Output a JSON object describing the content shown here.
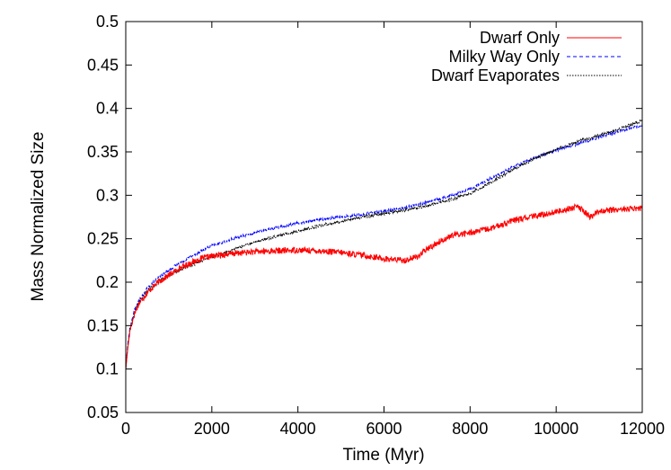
{
  "chart_data": {
    "type": "line",
    "title": "",
    "xlabel": "Time (Myr)",
    "ylabel": "Mass Normalized Size",
    "xlim": [
      0,
      12000
    ],
    "ylim": [
      0.05,
      0.5
    ],
    "xticks": [
      0,
      2000,
      4000,
      6000,
      8000,
      10000,
      12000
    ],
    "yticks": [
      0.05,
      0.1,
      0.15,
      0.2,
      0.25,
      0.3,
      0.35,
      0.4,
      0.45,
      0.5
    ],
    "xtick_labels": [
      "0",
      "2000",
      "4000",
      "6000",
      "8000",
      "10000",
      "12000"
    ],
    "ytick_labels": [
      "0.05",
      "0.1",
      "0.15",
      "0.2",
      "0.25",
      "0.3",
      "0.35",
      "0.4",
      "0.45",
      "0.5"
    ],
    "grid": false,
    "legend_position": "top-right",
    "series": [
      {
        "name": "Dwarf Only",
        "color": "#ff0000",
        "style": "solid",
        "x": [
          0,
          50,
          100,
          200,
          300,
          500,
          750,
          1000,
          1250,
          1500,
          1750,
          2000,
          2500,
          3000,
          3500,
          4000,
          4500,
          5000,
          5500,
          6000,
          6500,
          6800,
          7000,
          7300,
          7600,
          8000,
          8500,
          9000,
          9500,
          10000,
          10500,
          10800,
          11000,
          11500,
          12000
        ],
        "y": [
          0.1,
          0.125,
          0.145,
          0.163,
          0.175,
          0.188,
          0.2,
          0.208,
          0.216,
          0.222,
          0.227,
          0.23,
          0.233,
          0.235,
          0.236,
          0.237,
          0.236,
          0.234,
          0.231,
          0.227,
          0.225,
          0.23,
          0.238,
          0.247,
          0.254,
          0.257,
          0.262,
          0.271,
          0.276,
          0.281,
          0.287,
          0.275,
          0.282,
          0.284,
          0.285
        ]
      },
      {
        "name": "Milky Way Only",
        "color": "#0000ff",
        "style": "dashed",
        "x": [
          0,
          50,
          100,
          200,
          300,
          500,
          750,
          1000,
          1250,
          1500,
          1750,
          2000,
          2500,
          3000,
          3500,
          4000,
          4500,
          5000,
          5500,
          6000,
          6500,
          7000,
          7500,
          8000,
          8500,
          9000,
          9500,
          10000,
          10500,
          11000,
          11500,
          12000
        ],
        "y": [
          0.1,
          0.13,
          0.148,
          0.167,
          0.178,
          0.193,
          0.205,
          0.214,
          0.222,
          0.229,
          0.236,
          0.242,
          0.25,
          0.257,
          0.263,
          0.268,
          0.272,
          0.275,
          0.278,
          0.282,
          0.286,
          0.292,
          0.299,
          0.307,
          0.32,
          0.333,
          0.343,
          0.352,
          0.359,
          0.367,
          0.374,
          0.381
        ]
      },
      {
        "name": "Dwarf Evaporates",
        "color": "#000000",
        "style": "dotted",
        "x": [
          0,
          50,
          100,
          200,
          300,
          500,
          750,
          1000,
          1250,
          1500,
          1750,
          2000,
          2500,
          3000,
          3500,
          4000,
          4500,
          5000,
          5500,
          6000,
          6500,
          7000,
          7500,
          8000,
          8500,
          9000,
          9500,
          10000,
          10500,
          11000,
          11500,
          12000
        ],
        "y": [
          0.1,
          0.128,
          0.146,
          0.165,
          0.176,
          0.19,
          0.2,
          0.208,
          0.214,
          0.219,
          0.224,
          0.229,
          0.238,
          0.246,
          0.253,
          0.259,
          0.265,
          0.27,
          0.275,
          0.279,
          0.283,
          0.288,
          0.294,
          0.302,
          0.315,
          0.33,
          0.342,
          0.353,
          0.362,
          0.369,
          0.377,
          0.386
        ]
      }
    ]
  }
}
